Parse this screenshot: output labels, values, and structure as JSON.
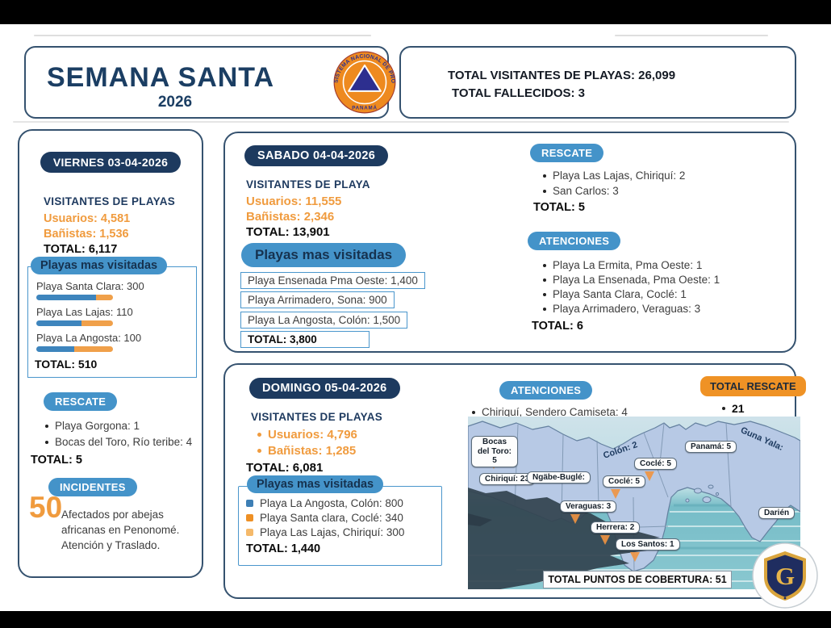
{
  "header": {
    "title": "SEMANA SANTA",
    "year": "2026",
    "logo_ring_text": "SISTEMA NACIONAL DE PROTECCIÓN CIVIL",
    "logo_bottom_text": "PANAMÁ",
    "total_visitantes": "TOTAL VISITANTES DE PLAYAS: 26,099",
    "total_fallecidos": "TOTAL FALLECIDOS: 3"
  },
  "colors": {
    "navy": "#1d3a5f",
    "blue": "#4493c9",
    "orange": "#f09b3e",
    "orange_deep": "#ef9225"
  },
  "viernes": {
    "date": "VIERNES 03-04-2026",
    "visitors_heading": "VISITANTES DE PLAYAS",
    "usuarios": "Usuarios: 4,581",
    "banistas": "Bañistas: 1,536",
    "total": "TOTAL:  6,117",
    "playas_heading": "Playas mas visitadas",
    "bars": [
      {
        "label": "Playa Santa Clara:  300",
        "value": 300,
        "blue_pct": 78
      },
      {
        "label": "Playa Las Lajas: 110",
        "value": 110,
        "blue_pct": 59
      },
      {
        "label": "Playa La Angosta: 100",
        "value": 100,
        "blue_pct": 49
      }
    ],
    "bars_total": "TOTAL: 510",
    "rescate_heading": "RESCATE",
    "rescate_items": [
      "Playa Gorgona: 1",
      "Bocas del Toro, Río teribe: 4"
    ],
    "rescate_total": "TOTAL: 5",
    "incidentes_heading": "INCIDENTES",
    "incidentes_number": "50",
    "incidentes_text": "Afectados por abejas africanas en Penonomé. Atención y Traslado."
  },
  "sabado": {
    "date": "SABADO 04-04-2026",
    "visitors_heading": "VISITANTES DE PLAYA",
    "usuarios": "Usuarios: 11,555",
    "banistas": "Bañistas: 2,346",
    "total": "TOTAL: 13,901",
    "playas_heading": "Playas mas visitadas",
    "playas_items": [
      "Playa Ensenada Pma Oeste:  1,400",
      "Playa Arrimadero, Sona: 900",
      "Playa La Angosta, Colón: 1,500"
    ],
    "playas_total": "TOTAL: 3,800",
    "rescate_heading": "RESCATE",
    "rescate_items": [
      "Playa Las Lajas, Chiriquí: 2",
      "San Carlos: 3"
    ],
    "rescate_total": "TOTAL: 5",
    "atenciones_heading": "ATENCIONES",
    "atenciones_items": [
      "Playa La Ermita, Pma Oeste: 1",
      "Playa La Ensenada, Pma Oeste: 1",
      "Playa Santa Clara, Coclé: 1",
      "Playa Arrimadero, Veraguas: 3"
    ],
    "atenciones_total": "TOTAL: 6"
  },
  "domingo": {
    "date": "DOMINGO 05-04-2026",
    "visitors_heading": "VISITANTES DE PLAYAS",
    "usuarios": "Usuarios: 4,796",
    "banistas": "Bañistas: 1,285",
    "total": "TOTAL: 6,081",
    "playas_heading": "Playas mas visitadas",
    "playas_items": [
      {
        "label": "Playa La Angosta, Colón: 800",
        "marker_color": "#3e7fb5"
      },
      {
        "label": "Playa Santa clara, Coclé: 340",
        "marker_color": "#ee9025"
      },
      {
        "label": "Playa Las Lajas, Chiriquí: 300",
        "marker_color": "#f5b96a"
      }
    ],
    "playas_total": "TOTAL: 1,440",
    "atenciones_heading": "ATENCIONES",
    "atenciones_item": "Chiriquí, Sendero Camiseta: 4",
    "total_rescate_heading": "TOTAL RESCATE",
    "total_rescate_value": "21"
  },
  "map": {
    "labels": {
      "bocas": "Bocas del Toro: 5",
      "chiriqui": "Chiriquí: 23",
      "ngabe": "Ngäbe-Buglé:",
      "colon": "Colón: 2",
      "cocle_norte": "Coclé: 5",
      "cocle_sur": "Coclé: 5",
      "panama": "Panamá: 5",
      "guna_yala": "Guna Yala:",
      "veraguas": "Veraguas: 3",
      "herrera": "Herrera: 2",
      "los_santos": "Los Santos: 1",
      "darien": "Darién"
    },
    "coverage_total": "TOTAL PUNTOS DE COBERTURA: 51"
  },
  "footer_logo": {
    "letter": "G"
  }
}
